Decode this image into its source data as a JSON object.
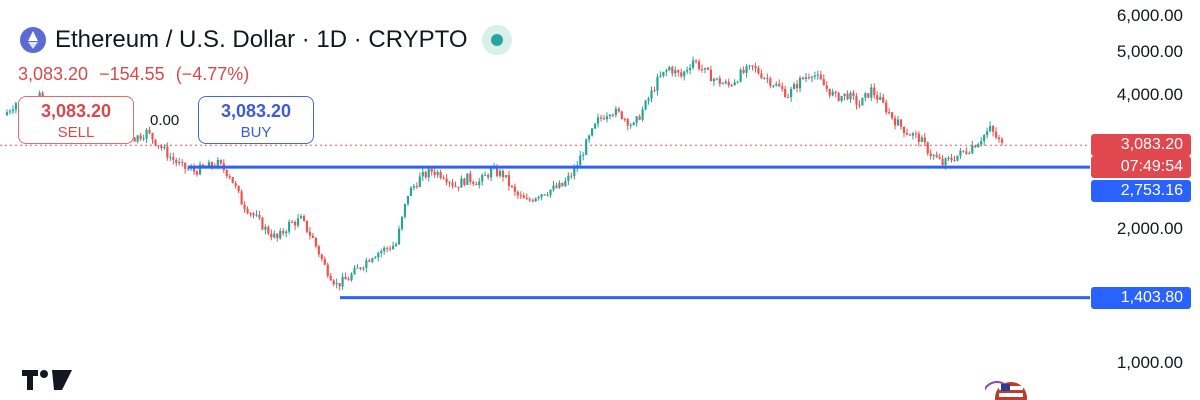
{
  "header": {
    "title": "Ethereum / U.S. Dollar · 1D · CRYPTO",
    "icon": "ethereum-icon",
    "status_color": "#26a69a"
  },
  "quote": {
    "last": "3,083.20",
    "change": "−154.55",
    "change_pct": "(−4.77%)",
    "color": "#d84a4a"
  },
  "trade": {
    "sell_price": "3,083.20",
    "sell_label": "SELL",
    "spread": "0.00",
    "buy_price": "3,083.20",
    "buy_label": "BUY"
  },
  "price_tag": {
    "price": "3,083.20",
    "countdown": "07:49:54",
    "color": "#e0474f"
  },
  "colors": {
    "up": "#26a69a",
    "down": "#ef5350",
    "level_line": "#2962ff"
  },
  "chart_data": {
    "type": "candlestick",
    "title": "Ethereum / U.S. Dollar · 1D · CRYPTO",
    "y_ticks": [
      "6,000.00",
      "5,000.00",
      "4,000.00",
      "2,000.00",
      "1,000.00"
    ],
    "y_tick_values": [
      6000,
      5000,
      4000,
      2000,
      1000
    ],
    "ylim": [
      880,
      6200
    ],
    "y_scale": "log",
    "grid": false,
    "price_line": 3083.2,
    "horizontal_levels": [
      {
        "value": 2753.16,
        "label": "2,753.16"
      },
      {
        "value": 1403.8,
        "label": "1,403.80"
      }
    ],
    "close_path": [
      [
        0,
        3600
      ],
      [
        4,
        3850
      ],
      [
        8,
        3750
      ],
      [
        12,
        3950
      ],
      [
        16,
        3400
      ],
      [
        20,
        3300
      ],
      [
        24,
        3550
      ],
      [
        28,
        3650
      ],
      [
        32,
        3450
      ],
      [
        36,
        3350
      ],
      [
        40,
        3400
      ],
      [
        44,
        3200
      ],
      [
        48,
        3300
      ],
      [
        52,
        3100
      ],
      [
        56,
        2900
      ],
      [
        60,
        2750
      ],
      [
        64,
        2700
      ],
      [
        68,
        2750
      ],
      [
        72,
        2800
      ],
      [
        76,
        2650
      ],
      [
        80,
        2300
      ],
      [
        84,
        2150
      ],
      [
        88,
        2000
      ],
      [
        92,
        1900
      ],
      [
        96,
        2050
      ],
      [
        100,
        2100
      ],
      [
        104,
        1900
      ],
      [
        108,
        1650
      ],
      [
        112,
        1500
      ],
      [
        116,
        1550
      ],
      [
        120,
        1650
      ],
      [
        124,
        1750
      ],
      [
        128,
        1800
      ],
      [
        132,
        1850
      ],
      [
        136,
        2400
      ],
      [
        140,
        2600
      ],
      [
        144,
        2700
      ],
      [
        148,
        2650
      ],
      [
        152,
        2500
      ],
      [
        156,
        2600
      ],
      [
        160,
        2550
      ],
      [
        164,
        2700
      ],
      [
        168,
        2650
      ],
      [
        172,
        2400
      ],
      [
        176,
        2300
      ],
      [
        180,
        2400
      ],
      [
        184,
        2450
      ],
      [
        188,
        2500
      ],
      [
        192,
        2700
      ],
      [
        196,
        3100
      ],
      [
        200,
        3500
      ],
      [
        204,
        3700
      ],
      [
        208,
        3600
      ],
      [
        212,
        3400
      ],
      [
        216,
        3800
      ],
      [
        220,
        4300
      ],
      [
        224,
        4600
      ],
      [
        228,
        4400
      ],
      [
        232,
        4800
      ],
      [
        236,
        4500
      ],
      [
        240,
        4300
      ],
      [
        244,
        4200
      ],
      [
        248,
        4450
      ],
      [
        252,
        4600
      ],
      [
        256,
        4400
      ],
      [
        260,
        4200
      ],
      [
        264,
        4000
      ],
      [
        268,
        4300
      ],
      [
        272,
        4500
      ],
      [
        276,
        4200
      ],
      [
        280,
        3950
      ],
      [
        284,
        4000
      ],
      [
        288,
        3800
      ],
      [
        292,
        4100
      ],
      [
        296,
        3800
      ],
      [
        300,
        3500
      ],
      [
        304,
        3300
      ],
      [
        308,
        3200
      ],
      [
        312,
        2950
      ],
      [
        316,
        2800
      ],
      [
        320,
        2900
      ],
      [
        324,
        3000
      ],
      [
        328,
        3150
      ],
      [
        332,
        3350
      ],
      [
        336,
        3083.2
      ]
    ]
  }
}
